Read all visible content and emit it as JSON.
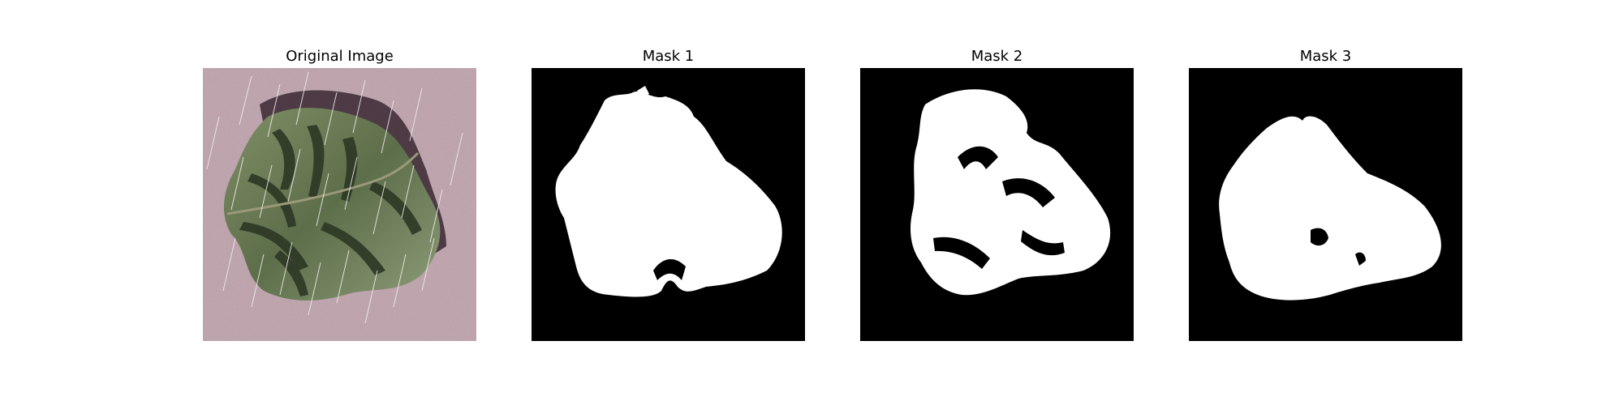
{
  "figure": {
    "panels": [
      {
        "title": "Original Image"
      },
      {
        "title": "Mask 1"
      },
      {
        "title": "Mask 2"
      },
      {
        "title": "Mask 3"
      }
    ]
  },
  "colors": {
    "background": "#b79ba4",
    "leaf_dark": "#2f3b27",
    "leaf_light": "#8a9a73",
    "shadow": "#3a2a35",
    "mask_bg": "#000000",
    "mask_fg": "#ffffff"
  }
}
